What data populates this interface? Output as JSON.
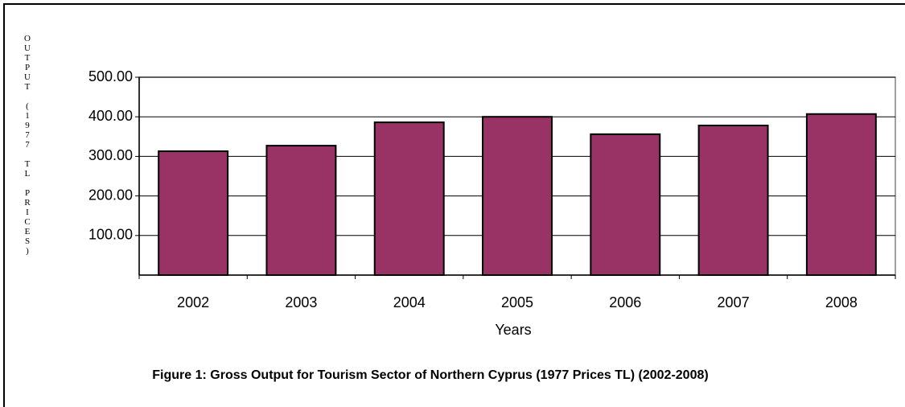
{
  "chart_data": {
    "type": "bar",
    "title": "Figure 1: Gross Output for Tourism Sector  of Northern Cyprus (1977 Prices TL) (2002-2008)",
    "x_label": "Years",
    "y_label": "OUTPUT (1977 TL PRICES)",
    "categories": [
      "2002",
      "2003",
      "2004",
      "2005",
      "2006",
      "2007",
      "2008"
    ],
    "values": [
      313,
      327,
      386,
      400,
      356,
      378,
      407
    ],
    "color": "#993366",
    "ylim": [
      0,
      500
    ],
    "yticks": [
      {
        "value": 100,
        "label": "100.00"
      },
      {
        "value": 200,
        "label": "200.00"
      },
      {
        "value": 300,
        "label": "300.00"
      },
      {
        "value": 400,
        "label": "400.00"
      },
      {
        "value": 500,
        "label": "500.00"
      }
    ],
    "grid": true
  }
}
